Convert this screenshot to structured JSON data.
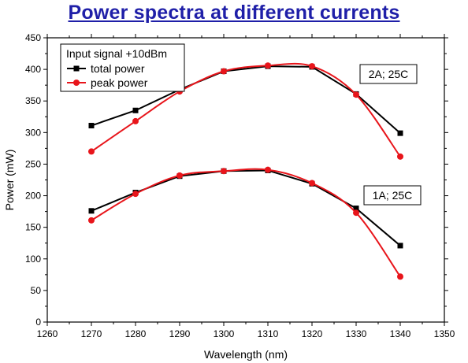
{
  "chart_data": {
    "type": "line",
    "title": "Power spectra at different currents",
    "xlabel": "Wavelength (nm)",
    "ylabel": "Power (mW)",
    "xlim": [
      1260,
      1350
    ],
    "ylim": [
      0,
      450
    ],
    "xticks": [
      1260,
      1270,
      1280,
      1290,
      1300,
      1310,
      1320,
      1330,
      1340,
      1350
    ],
    "yticks": [
      0,
      50,
      100,
      150,
      200,
      250,
      300,
      350,
      400,
      450
    ],
    "grid": false,
    "legend": {
      "title": "Input signal +10dBm",
      "placement": "top-left",
      "entries": [
        "total power",
        "peak power"
      ]
    },
    "annotations": [
      "2A; 25C",
      "1A; 25C"
    ],
    "x": [
      1270,
      1280,
      1290,
      1300,
      1310,
      1320,
      1330,
      1340
    ],
    "groups": [
      {
        "label": "2A; 25C",
        "series": [
          {
            "name": "total power",
            "color": "#000000",
            "marker": "square",
            "values": [
              311,
              335,
              368,
              397,
              405,
              404,
              361,
              299
            ]
          },
          {
            "name": "peak power",
            "color": "#e8151b",
            "marker": "circle",
            "values": [
              270,
              318,
              365,
              397,
              406,
              405,
              360,
              262
            ]
          }
        ]
      },
      {
        "label": "1A; 25C",
        "series": [
          {
            "name": "total power",
            "color": "#000000",
            "marker": "square",
            "values": [
              176,
              205,
              231,
              239,
              240,
              219,
              180,
              121
            ]
          },
          {
            "name": "peak power",
            "color": "#e8151b",
            "marker": "circle",
            "values": [
              161,
              203,
              232,
              239,
              241,
              220,
              173,
              72
            ]
          }
        ]
      }
    ]
  }
}
